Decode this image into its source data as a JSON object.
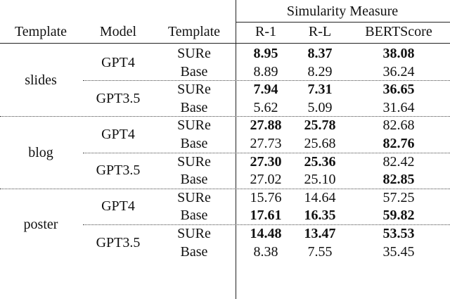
{
  "header": {
    "group_label": "Simularity Measure",
    "columns": [
      "Template",
      "Model",
      "Template",
      "R-1",
      "R-L",
      "BERTScore"
    ]
  },
  "groups": [
    {
      "template": "slides",
      "models": [
        {
          "name": "GPT4",
          "rows": [
            {
              "method": "SURe",
              "r1": "8.95",
              "rl": "8.37",
              "bert": "38.08",
              "bold": [
                true,
                true,
                true
              ]
            },
            {
              "method": "Base",
              "r1": "8.89",
              "rl": "8.29",
              "bert": "36.24",
              "bold": [
                false,
                false,
                false
              ]
            }
          ]
        },
        {
          "name": "GPT3.5",
          "rows": [
            {
              "method": "SURe",
              "r1": "7.94",
              "rl": "7.31",
              "bert": "36.65",
              "bold": [
                true,
                true,
                true
              ]
            },
            {
              "method": "Base",
              "r1": "5.62",
              "rl": "5.09",
              "bert": "31.64",
              "bold": [
                false,
                false,
                false
              ]
            }
          ]
        }
      ]
    },
    {
      "template": "blog",
      "models": [
        {
          "name": "GPT4",
          "rows": [
            {
              "method": "SURe",
              "r1": "27.88",
              "rl": "25.78",
              "bert": "82.68",
              "bold": [
                true,
                true,
                false
              ]
            },
            {
              "method": "Base",
              "r1": "27.73",
              "rl": "25.68",
              "bert": "82.76",
              "bold": [
                false,
                false,
                true
              ]
            }
          ]
        },
        {
          "name": "GPT3.5",
          "rows": [
            {
              "method": "SURe",
              "r1": "27.30",
              "rl": "25.36",
              "bert": "82.42",
              "bold": [
                true,
                true,
                false
              ]
            },
            {
              "method": "Base",
              "r1": "27.02",
              "rl": "25.10",
              "bert": "82.85",
              "bold": [
                false,
                false,
                true
              ]
            }
          ]
        }
      ]
    },
    {
      "template": "poster",
      "models": [
        {
          "name": "GPT4",
          "rows": [
            {
              "method": "SURe",
              "r1": "15.76",
              "rl": "14.64",
              "bert": "57.25",
              "bold": [
                false,
                false,
                false
              ]
            },
            {
              "method": "Base",
              "r1": "17.61",
              "rl": "16.35",
              "bert": "59.82",
              "bold": [
                true,
                true,
                true
              ]
            }
          ]
        },
        {
          "name": "GPT3.5",
          "rows": [
            {
              "method": "SURe",
              "r1": "14.48",
              "rl": "13.47",
              "bert": "53.53",
              "bold": [
                true,
                true,
                true
              ]
            },
            {
              "method": "Base",
              "r1": "8.38",
              "rl": "7.55",
              "bert": "35.45",
              "bold": [
                false,
                false,
                false
              ]
            }
          ]
        }
      ]
    }
  ]
}
